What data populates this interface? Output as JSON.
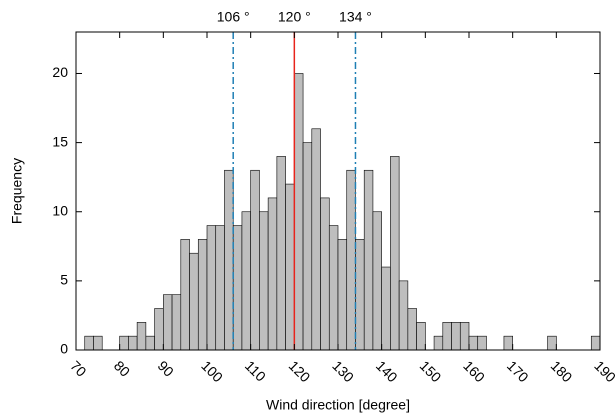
{
  "chart_data": {
    "type": "histogram",
    "x_label": "Wind direction [degree]",
    "y_label": "Frequency",
    "bins": [
      70,
      72,
      74,
      76,
      78,
      80,
      82,
      84,
      86,
      88,
      90,
      92,
      94,
      96,
      98,
      100,
      102,
      104,
      106,
      108,
      110,
      112,
      114,
      116,
      118,
      120,
      122,
      124,
      126,
      128,
      130,
      132,
      134,
      136,
      138,
      140,
      142,
      144,
      146,
      148,
      150,
      152,
      154,
      156,
      158,
      160,
      162,
      164,
      166,
      168,
      170,
      172,
      174,
      176,
      178,
      180,
      182,
      184,
      186,
      188,
      190
    ],
    "values": [
      0,
      1,
      1,
      0,
      0,
      1,
      1,
      2,
      1,
      3,
      4,
      4,
      8,
      7,
      8,
      9,
      9,
      13,
      9,
      10,
      13,
      10,
      11,
      14,
      12,
      20,
      15,
      16,
      11,
      9,
      8,
      13,
      8,
      13,
      10,
      6,
      14,
      5,
      3,
      2,
      0,
      1,
      2,
      2,
      2,
      1,
      1,
      0,
      0,
      1,
      0,
      0,
      0,
      0,
      1,
      0,
      0,
      0,
      0,
      1
    ],
    "color": "#bebebe",
    "edge_color": "#000000",
    "xlim": [
      70,
      190
    ],
    "xticks": [
      70,
      80,
      90,
      100,
      110,
      120,
      130,
      140,
      150,
      160,
      170,
      180,
      190
    ],
    "ylim": [
      0,
      23
    ],
    "yticks": [
      0,
      5,
      10,
      15,
      20
    ],
    "annotations": [
      {
        "x": 106,
        "label": "106 °",
        "color": "#1f7fb4",
        "style": "dashdot"
      },
      {
        "x": 120,
        "label": "120 °",
        "color": "#e8241c",
        "style": "solid"
      },
      {
        "x": 134,
        "label": "134 °",
        "color": "#1f7fb4",
        "style": "dashdot"
      }
    ]
  }
}
